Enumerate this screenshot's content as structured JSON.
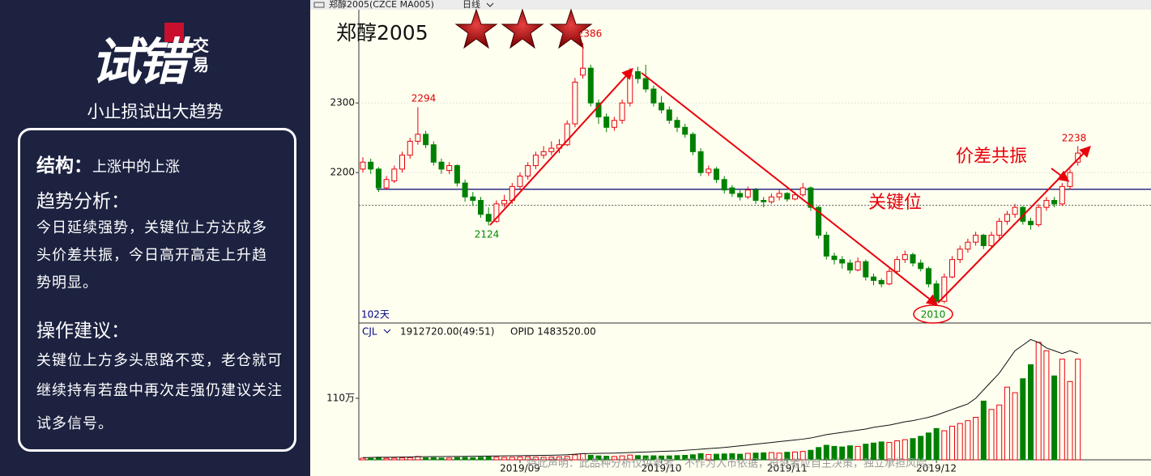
{
  "sidebar": {
    "logo_main": "试错",
    "logo_sub": "交易",
    "slogan": "小止损试出大趋势",
    "structure_label": "结构：",
    "structure_text": "上涨中的上涨",
    "analysis_label": "趋势分析：",
    "analysis_lines": [
      "今日延续强势，关键位上方达成多",
      "头价差共振，今日高开高走上升趋",
      "势明显。"
    ],
    "advice_label": "操作建议：",
    "advice_lines": [
      "关键位上方多头思路不变，老仓就可",
      "继续持有若盘中再次走强仍建议关注",
      "试多信号。"
    ]
  },
  "chart_data": {
    "type": "candlestick",
    "toolbar_symbol": "郑醇2005(CZCE MA005)",
    "period": "日线",
    "title": "郑醇2005",
    "up_color": "#e8000b",
    "down_color": "#008000",
    "grid": true,
    "xlim": [
      -0.5,
      91.5
    ],
    "xticks": [
      {
        "value": 20,
        "label": "2019/09"
      },
      {
        "value": 38,
        "label": "2019/10"
      },
      {
        "value": 54,
        "label": "2019/11"
      },
      {
        "value": 73,
        "label": "2019/12"
      }
    ],
    "ylim": [
      1985,
      2434
    ],
    "yticks": [
      2300,
      2200
    ],
    "key_level": 2176,
    "ref_level": 2153,
    "peak_labels": [
      2294,
      2386,
      2238
    ],
    "trough_labels": [
      2124,
      2010
    ],
    "resonance_label": "价差共振",
    "key_level_label": "关键位",
    "days_label": "102天",
    "ohlc": [
      [
        2205,
        2222,
        2200,
        2215
      ],
      [
        2215,
        2220,
        2198,
        2205
      ],
      [
        2205,
        2208,
        2172,
        2178
      ],
      [
        2178,
        2195,
        2175,
        2190
      ],
      [
        2188,
        2210,
        2185,
        2205
      ],
      [
        2205,
        2230,
        2200,
        2225
      ],
      [
        2225,
        2250,
        2220,
        2245
      ],
      [
        2245,
        2294,
        2240,
        2255
      ],
      [
        2255,
        2260,
        2235,
        2240
      ],
      [
        2240,
        2245,
        2210,
        2215
      ],
      [
        2215,
        2220,
        2198,
        2205
      ],
      [
        2203,
        2215,
        2198,
        2210
      ],
      [
        2210,
        2212,
        2180,
        2185
      ],
      [
        2185,
        2190,
        2158,
        2165
      ],
      [
        2165,
        2172,
        2152,
        2160
      ],
      [
        2160,
        2165,
        2135,
        2140
      ],
      [
        2140,
        2150,
        2124,
        2130
      ],
      [
        2130,
        2160,
        2128,
        2155
      ],
      [
        2155,
        2168,
        2150,
        2160
      ],
      [
        2160,
        2185,
        2155,
        2180
      ],
      [
        2180,
        2200,
        2175,
        2195
      ],
      [
        2195,
        2215,
        2190,
        2210
      ],
      [
        2210,
        2230,
        2205,
        2225
      ],
      [
        2225,
        2238,
        2220,
        2230
      ],
      [
        2230,
        2245,
        2225,
        2235
      ],
      [
        2235,
        2248,
        2228,
        2240
      ],
      [
        2240,
        2275,
        2238,
        2270
      ],
      [
        2270,
        2336,
        2265,
        2330
      ],
      [
        2340,
        2386,
        2335,
        2350
      ],
      [
        2350,
        2355,
        2295,
        2300
      ],
      [
        2300,
        2305,
        2270,
        2280
      ],
      [
        2280,
        2285,
        2258,
        2265
      ],
      [
        2265,
        2280,
        2260,
        2275
      ],
      [
        2275,
        2305,
        2270,
        2300
      ],
      [
        2300,
        2350,
        2295,
        2340
      ],
      [
        2345,
        2352,
        2328,
        2335
      ],
      [
        2335,
        2355,
        2315,
        2320
      ],
      [
        2320,
        2325,
        2295,
        2300
      ],
      [
        2300,
        2310,
        2285,
        2290
      ],
      [
        2290,
        2295,
        2270,
        2275
      ],
      [
        2275,
        2280,
        2258,
        2265
      ],
      [
        2265,
        2270,
        2250,
        2255
      ],
      [
        2255,
        2258,
        2225,
        2230
      ],
      [
        2230,
        2235,
        2195,
        2200
      ],
      [
        2200,
        2210,
        2195,
        2205
      ],
      [
        2205,
        2208,
        2185,
        2190
      ],
      [
        2190,
        2195,
        2170,
        2175
      ],
      [
        2178,
        2182,
        2165,
        2170
      ],
      [
        2170,
        2175,
        2160,
        2165
      ],
      [
        2165,
        2180,
        2162,
        2175
      ],
      [
        2175,
        2178,
        2155,
        2160
      ],
      [
        2160,
        2165,
        2150,
        2158
      ],
      [
        2158,
        2170,
        2155,
        2165
      ],
      [
        2165,
        2175,
        2160,
        2170
      ],
      [
        2170,
        2172,
        2158,
        2162
      ],
      [
        2162,
        2172,
        2160,
        2168
      ],
      [
        2168,
        2185,
        2165,
        2178
      ],
      [
        2178,
        2180,
        2145,
        2150
      ],
      [
        2150,
        2152,
        2105,
        2110
      ],
      [
        2110,
        2115,
        2075,
        2080
      ],
      [
        2080,
        2085,
        2068,
        2075
      ],
      [
        2075,
        2080,
        2062,
        2070
      ],
      [
        2070,
        2075,
        2055,
        2060
      ],
      [
        2060,
        2078,
        2058,
        2072
      ],
      [
        2072,
        2075,
        2045,
        2050
      ],
      [
        2050,
        2055,
        2038,
        2045
      ],
      [
        2045,
        2048,
        2035,
        2040
      ],
      [
        2040,
        2062,
        2038,
        2058
      ],
      [
        2058,
        2080,
        2055,
        2075
      ],
      [
        2075,
        2088,
        2070,
        2082
      ],
      [
        2082,
        2085,
        2065,
        2070
      ],
      [
        2070,
        2075,
        2058,
        2062
      ],
      [
        2062,
        2065,
        2035,
        2040
      ],
      [
        2040,
        2045,
        2010,
        2015
      ],
      [
        2015,
        2055,
        2012,
        2050
      ],
      [
        2050,
        2080,
        2048,
        2075
      ],
      [
        2075,
        2095,
        2070,
        2090
      ],
      [
        2090,
        2105,
        2085,
        2100
      ],
      [
        2100,
        2115,
        2095,
        2110
      ],
      [
        2110,
        2112,
        2090,
        2095
      ],
      [
        2095,
        2115,
        2092,
        2110
      ],
      [
        2110,
        2135,
        2105,
        2130
      ],
      [
        2130,
        2145,
        2125,
        2140
      ],
      [
        2140,
        2155,
        2135,
        2150
      ],
      [
        2150,
        2152,
        2125,
        2130
      ],
      [
        2130,
        2135,
        2118,
        2125
      ],
      [
        2125,
        2155,
        2122,
        2150
      ],
      [
        2150,
        2165,
        2145,
        2160
      ],
      [
        2160,
        2165,
        2150,
        2155
      ],
      [
        2155,
        2185,
        2152,
        2180
      ],
      [
        2180,
        2205,
        2175,
        2200
      ],
      [
        2215,
        2238,
        2210,
        2228
      ]
    ],
    "volume": {
      "indicator": "CJL",
      "readout": "1912720.00(49:51)",
      "opid_label": "OPID 1483520.00",
      "ylim": [
        0,
        2200000
      ],
      "yticks": [
        {
          "value": 1100000,
          "label": "110万"
        }
      ],
      "values": [
        30000,
        25000,
        45000,
        28000,
        30000,
        35000,
        40000,
        60000,
        35000,
        38000,
        30000,
        32000,
        40000,
        42000,
        38000,
        45000,
        50000,
        48000,
        42000,
        45000,
        50000,
        55000,
        48000,
        46000,
        50000,
        52000,
        60000,
        90000,
        110000,
        80000,
        70000,
        65000,
        60000,
        70000,
        85000,
        75000,
        70000,
        72000,
        68000,
        70000,
        75000,
        80000,
        90000,
        110000,
        95000,
        100000,
        105000,
        110000,
        100000,
        115000,
        120000,
        125000,
        130000,
        120000,
        135000,
        140000,
        150000,
        170000,
        220000,
        260000,
        240000,
        230000,
        250000,
        240000,
        280000,
        300000,
        320000,
        310000,
        340000,
        360000,
        380000,
        420000,
        480000,
        560000,
        520000,
        600000,
        650000,
        700000,
        760000,
        1050000,
        900000,
        980000,
        1300000,
        1200000,
        1450000,
        1700000,
        2100000,
        1950000,
        1500000,
        1800000,
        1400000,
        1800000
      ],
      "open_interest": [
        40000,
        42000,
        45000,
        46000,
        47000,
        48000,
        50000,
        55000,
        56000,
        57000,
        58000,
        59000,
        60000,
        62000,
        63000,
        65000,
        67000,
        68000,
        70000,
        72000,
        74000,
        76000,
        78000,
        80000,
        82000,
        85000,
        90000,
        100000,
        110000,
        112000,
        115000,
        118000,
        120000,
        125000,
        130000,
        135000,
        140000,
        145000,
        150000,
        155000,
        160000,
        170000,
        180000,
        190000,
        200000,
        210000,
        220000,
        235000,
        250000,
        265000,
        280000,
        295000,
        310000,
        325000,
        340000,
        355000,
        370000,
        390000,
        420000,
        450000,
        470000,
        490000,
        510000,
        530000,
        550000,
        580000,
        600000,
        620000,
        650000,
        680000,
        700000,
        730000,
        760000,
        800000,
        850000,
        900000,
        950000,
        1000000,
        1100000,
        1250000,
        1400000,
        1550000,
        1750000,
        1950000,
        2050000,
        2150000,
        2100000,
        2000000,
        1950000,
        1900000,
        1950000,
        1900000
      ]
    },
    "disclaimer": "特此声明：此品种分析仅供参考，不作为入市依据，投资者应自主决策，独立承担风险。"
  }
}
